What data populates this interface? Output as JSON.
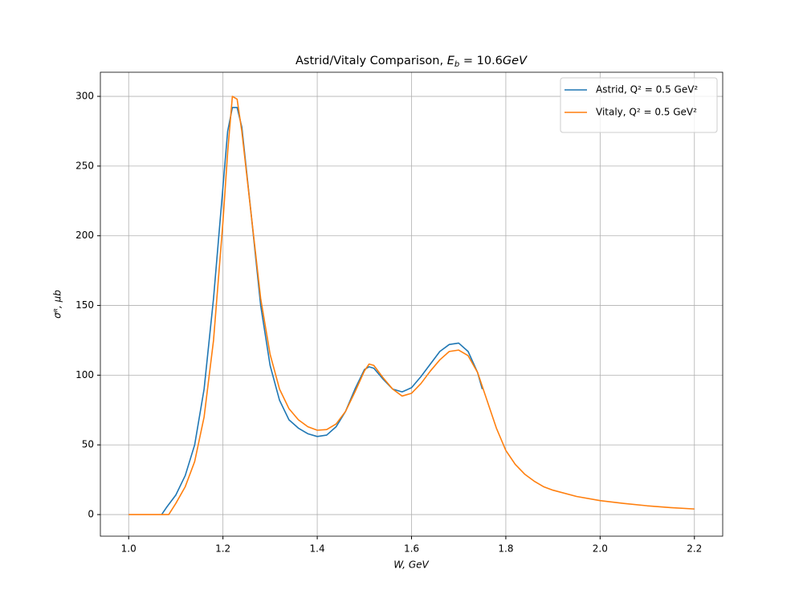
{
  "chart_data": {
    "type": "line",
    "title": [
      "Astrid/Vitaly Comparison, ",
      "E",
      "b",
      " = 10.6",
      "GeV"
    ],
    "xlabel": "W, GeV",
    "ylabel": "σᴿ, μb",
    "xlim": [
      0.94,
      2.26
    ],
    "ylim": [
      -15.5,
      317.3
    ],
    "xticks": [
      {
        "value": 1,
        "label": "1.0"
      },
      1.2,
      1.4,
      1.6,
      1.8,
      {
        "value": 2,
        "label": "2.0"
      },
      2.2
    ],
    "yticks": [
      0,
      50,
      100,
      150,
      200,
      250,
      300
    ],
    "grid": true,
    "legend": "upper right",
    "series": [
      {
        "name": "Astrid, Q² = 0.5 GeV²",
        "color": "#1f77b4",
        "x": [
          1.07,
          1.08,
          1.1,
          1.12,
          1.14,
          1.16,
          1.18,
          1.2,
          1.21,
          1.22,
          1.23,
          1.24,
          1.26,
          1.28,
          1.3,
          1.32,
          1.34,
          1.36,
          1.38,
          1.4,
          1.42,
          1.44,
          1.46,
          1.48,
          1.5,
          1.51,
          1.52,
          1.54,
          1.56,
          1.58,
          1.6,
          1.62,
          1.64,
          1.66,
          1.68,
          1.7,
          1.72,
          1.74,
          1.75
        ],
        "values": [
          0,
          5,
          14,
          28,
          50,
          90,
          155,
          235,
          275,
          292,
          292,
          278,
          215,
          150,
          107,
          82,
          68,
          62,
          58,
          56,
          57,
          63,
          74,
          90,
          104,
          106,
          105,
          97,
          90,
          88,
          91,
          99,
          108,
          117,
          122,
          123,
          117,
          102,
          90
        ]
      },
      {
        "name": "Vitaly, Q² = 0.5 GeV²",
        "color": "#ff7f0e",
        "x": [
          1.0,
          1.02,
          1.04,
          1.06,
          1.08,
          1.085,
          1.1,
          1.12,
          1.14,
          1.16,
          1.18,
          1.2,
          1.21,
          1.22,
          1.23,
          1.24,
          1.26,
          1.28,
          1.3,
          1.32,
          1.34,
          1.36,
          1.38,
          1.4,
          1.42,
          1.44,
          1.46,
          1.48,
          1.5,
          1.51,
          1.52,
          1.54,
          1.56,
          1.58,
          1.6,
          1.62,
          1.64,
          1.66,
          1.68,
          1.7,
          1.72,
          1.74,
          1.76,
          1.78,
          1.8,
          1.82,
          1.84,
          1.86,
          1.88,
          1.9,
          1.95,
          2.0,
          2.05,
          2.1,
          2.15,
          2.2
        ],
        "values": [
          0,
          0,
          0,
          0,
          0,
          0,
          8,
          20,
          38,
          70,
          125,
          210,
          260,
          300,
          298,
          275,
          215,
          155,
          115,
          90,
          76,
          68,
          63,
          60.5,
          61,
          65,
          74,
          88,
          103,
          108,
          107,
          98,
          90,
          85,
          87,
          94,
          103,
          111,
          117,
          118,
          114,
          102,
          82,
          62,
          46,
          36,
          29,
          24,
          20,
          17.5,
          13,
          10,
          8,
          6.3,
          5,
          4
        ]
      }
    ]
  }
}
